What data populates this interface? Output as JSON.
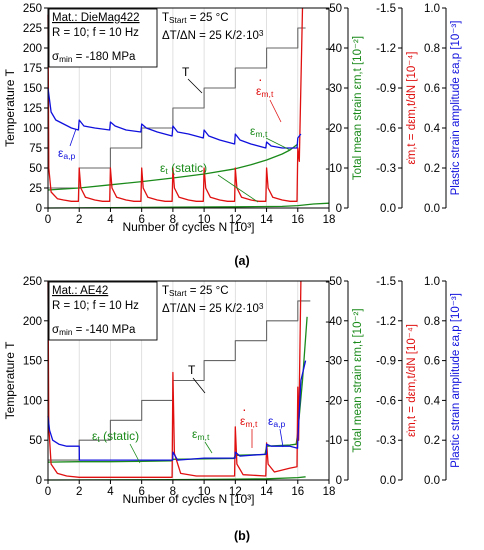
{
  "panels": [
    {
      "panel_label": "(a)",
      "info": {
        "material": "Mat.: DieMag422",
        "line2": "R = 10; f = 10 Hz",
        "sigma_sym": "σ",
        "sigma_sub": "min",
        "sigma_val": " = -180 MPa",
        "tstart_sym": "T",
        "tstart_sub": "Start",
        "tstart_val": " = 25 °C",
        "rate": "ΔT/ΔN = 25 K/2·10",
        "rate_sup": "3"
      },
      "unit_celsius": "°C",
      "annotations": {
        "T": "T",
        "eps_static": "ε",
        "eps_static_sub": "t",
        "eps_static_tail": " (static)",
        "eps_mt": "ε",
        "eps_mt_sub": "m,t",
        "eps_ap": "ε",
        "eps_ap_sub": "a,p",
        "eps_rate": "ε",
        "eps_rate_sub": "m,t"
      },
      "chart_data": {
        "type": "line",
        "xlabel": "Number of cycles N [10³]",
        "xlim": [
          0,
          18
        ],
        "x_ticks": [
          "0",
          "2",
          "4",
          "6",
          "8",
          "10",
          "12",
          "14",
          "16",
          "18"
        ],
        "axes": {
          "temperature": {
            "label": "Temperature T",
            "lim": [
              0,
              250
            ],
            "ticks": [
              "0",
              "25",
              "50",
              "75",
              "100",
              "125",
              "150",
              "175",
              "200",
              "225",
              "250"
            ]
          },
          "total_mean_strain": {
            "label": "Total mean strain εm,t [10⁻²]",
            "lim": [
              0,
              -50
            ],
            "ticks": [
              "0",
              "-10",
              "-20",
              "-30",
              "-40",
              "-50"
            ],
            "color": "#1a8a1a"
          },
          "strain_rate": {
            "label": "ε̇m,t = dεm,t/dN [10⁻⁴]",
            "lim": [
              0,
              -1.5
            ],
            "ticks": [
              "0.0",
              "-0.3",
              "-0.6",
              "-0.9",
              "-1.2",
              "-1.5"
            ],
            "color": "#e01010"
          },
          "plastic_amplitude": {
            "label": "Plastic strain amplitude εa,p [10⁻³]",
            "lim": [
              0,
              1.0
            ],
            "ticks": [
              "0.0",
              "0.2",
              "0.4",
              "0.6",
              "0.8",
              "1.0"
            ],
            "color": "#1010dd"
          }
        },
        "series": [
          {
            "color": "#666666",
            "axis": "temperature",
            "x": [
              0,
              2,
              2,
              4,
              4,
              6,
              6,
              8,
              8,
              10,
              10,
              12,
              12,
              14,
              14,
              16,
              16,
              16.5
            ],
            "y": [
              25,
              25,
              50,
              50,
              75,
              75,
              100,
              100,
              125,
              125,
              150,
              150,
              175,
              175,
              200,
              200,
              225,
              225
            ]
          },
          {
            "color": "#1a8a1a",
            "axis": "total_mean_strain",
            "x": [
              0,
              2,
              4,
              6,
              8,
              10,
              12,
              13,
              14,
              15,
              15.5,
              16
            ],
            "y": [
              -4.5,
              -5,
              -5.8,
              -6.6,
              -7.5,
              -8.5,
              -9.8,
              -10.8,
              -12,
              -13.5,
              -14.5,
              -16
            ]
          },
          {
            "color": "#1a8a1a",
            "axis": "total_mean_strain",
            "x": [
              0,
              4,
              8,
              12,
              15,
              16,
              17,
              18
            ],
            "y": [
              0,
              -0.1,
              -0.2,
              -0.3,
              -0.4,
              -0.6,
              -1,
              -1.2
            ]
          },
          {
            "color": "#e01010",
            "axis": "strain_rate",
            "x": [
              0,
              0.05,
              0.2,
              0.6,
              1,
              1.5,
              1.95,
              2,
              2.1,
              2.4,
              3,
              3.5,
              3.95,
              4,
              4.1,
              4.4,
              5,
              5.5,
              5.95,
              6,
              6.1,
              6.4,
              7,
              7.5,
              7.95,
              8,
              8.1,
              8.4,
              9,
              9.5,
              9.95,
              10,
              10.1,
              10.4,
              11,
              11.5,
              11.95,
              12,
              12.1,
              12.4,
              13,
              13.5,
              13.95,
              14,
              14.1,
              14.4,
              15,
              15.5,
              15.95,
              16,
              16.1,
              16.3
            ],
            "y": [
              -1.45,
              -0.3,
              -0.12,
              -0.07,
              -0.06,
              -0.05,
              -0.05,
              -0.3,
              -0.15,
              -0.08,
              -0.06,
              -0.05,
              -0.05,
              -0.3,
              -0.15,
              -0.08,
              -0.06,
              -0.05,
              -0.05,
              -0.3,
              -0.15,
              -0.08,
              -0.06,
              -0.05,
              -0.05,
              -0.3,
              -0.15,
              -0.08,
              -0.06,
              -0.05,
              -0.05,
              -0.3,
              -0.15,
              -0.08,
              -0.06,
              -0.05,
              -0.05,
              -0.3,
              -0.15,
              -0.08,
              -0.06,
              -0.05,
              -0.05,
              -0.3,
              -0.15,
              -0.08,
              -0.06,
              -0.05,
              -0.05,
              -0.45,
              -0.35,
              -1.5
            ]
          },
          {
            "color": "#1010dd",
            "axis": "plastic_amplitude",
            "x": [
              0,
              0.2,
              0.5,
              1,
              1.5,
              1.95,
              2,
              2.3,
              3,
              3.95,
              4,
              4.3,
              5,
              5.95,
              6,
              6.3,
              7,
              7.95,
              8,
              8.3,
              9,
              9.95,
              10,
              10.3,
              11,
              11.95,
              12,
              12.3,
              13,
              13.95,
              14,
              14.3,
              15,
              15.95,
              16,
              16.2
            ],
            "y": [
              0.6,
              0.48,
              0.44,
              0.42,
              0.4,
              0.39,
              0.44,
              0.41,
              0.4,
              0.39,
              0.43,
              0.41,
              0.39,
              0.38,
              0.42,
              0.4,
              0.38,
              0.36,
              0.41,
              0.38,
              0.37,
              0.35,
              0.39,
              0.36,
              0.34,
              0.32,
              0.37,
              0.34,
              0.32,
              0.3,
              0.33,
              0.31,
              0.3,
              0.3,
              0.35,
              0.37
            ]
          }
        ]
      }
    },
    {
      "panel_label": "(b)",
      "info": {
        "material": "Mat.: AE42",
        "line2": "R = 10; f = 10 Hz",
        "sigma_sym": "σ",
        "sigma_sub": "min",
        "sigma_val": " = -140 MPa",
        "tstart_sym": "T",
        "tstart_sub": "Start",
        "tstart_val": " = 25 °C",
        "rate": "ΔT/ΔN = 25 K/2·10",
        "rate_sup": "3"
      },
      "unit_celsius": "°C",
      "annotations": {
        "T": "T",
        "eps_static": "ε",
        "eps_static_sub": "t",
        "eps_static_tail": " (static)",
        "eps_mt": "ε",
        "eps_mt_sub": "m,t",
        "eps_ap": "ε",
        "eps_ap_sub": "a,p",
        "eps_rate": "ε",
        "eps_rate_sub": "m,t"
      },
      "chart_data": {
        "type": "line",
        "xlabel": "Number of cycles N [10³]",
        "xlim": [
          0,
          18
        ],
        "x_ticks": [
          "0",
          "2",
          "4",
          "6",
          "8",
          "10",
          "12",
          "14",
          "16",
          "18"
        ],
        "axes": {
          "temperature": {
            "label": "Temperature T",
            "lim": [
              0,
              250
            ],
            "ticks": [
              "0",
              "50",
              "100",
              "150",
              "200",
              "250"
            ]
          },
          "total_mean_strain": {
            "label": "Total mean strain εm,t [10⁻²]",
            "lim": [
              0,
              -50
            ],
            "ticks": [
              "0",
              "-10",
              "-20",
              "-30",
              "-40",
              "-50"
            ],
            "color": "#1a8a1a"
          },
          "strain_rate": {
            "label": "ε̇m,t = dεm,t/dN [10⁻⁴]",
            "lim": [
              0,
              -1.5
            ],
            "ticks": [
              "0.0",
              "-0.3",
              "-0.6",
              "-0.9",
              "-1.2",
              "-1.5"
            ],
            "color": "#e01010"
          },
          "plastic_amplitude": {
            "label": "Plastic strain amplitude εa,p [10⁻³]",
            "lim": [
              0,
              1.0
            ],
            "ticks": [
              "0.0",
              "0.2",
              "0.4",
              "0.6",
              "0.8",
              "1.0"
            ],
            "color": "#1010dd"
          }
        },
        "series": [
          {
            "color": "#666666",
            "axis": "temperature",
            "x": [
              0,
              2,
              2,
              4,
              4,
              6,
              6,
              8,
              8,
              10,
              10,
              12,
              12,
              14,
              14,
              16,
              16,
              16.8
            ],
            "y": [
              25,
              25,
              50,
              50,
              75,
              75,
              100,
              100,
              125,
              125,
              150,
              150,
              175,
              175,
              200,
              200,
              225,
              225
            ]
          },
          {
            "color": "#1a8a1a",
            "axis": "total_mean_strain",
            "x": [
              0,
              2,
              4,
              6,
              7.9,
              8,
              10,
              11.9,
              12,
              13.9,
              14,
              15.5,
              15.9,
              16,
              16.3,
              16.6
            ],
            "y": [
              -4.5,
              -4.6,
              -4.6,
              -4.7,
              -4.8,
              -5.2,
              -5.3,
              -5.4,
              -6.2,
              -6.4,
              -8.5,
              -8.8,
              -9,
              -12,
              -25,
              -41
            ]
          },
          {
            "color": "#1a8a1a",
            "axis": "total_mean_strain",
            "x": [
              0,
              8,
              12,
              14,
              16,
              16.5
            ],
            "y": [
              0,
              -0.1,
              -0.2,
              -0.3,
              -0.6,
              -0.8
            ]
          },
          {
            "color": "#e01010",
            "axis": "strain_rate",
            "x": [
              0,
              0.05,
              0.2,
              0.6,
              1.2,
              2,
              4,
              6,
              7.95,
              8,
              8.1,
              8.5,
              9.5,
              11.95,
              12,
              12.1,
              12.5,
              13.95,
              14,
              14.1,
              14.5,
              15.5,
              15.95,
              16,
              16.05,
              16.2
            ],
            "y": [
              -1.5,
              -0.4,
              -0.12,
              -0.05,
              -0.03,
              -0.02,
              -0.02,
              -0.02,
              -0.02,
              -0.81,
              -0.2,
              -0.05,
              -0.03,
              -0.03,
              -0.4,
              -0.12,
              -0.04,
              -0.03,
              -0.28,
              -0.12,
              -0.06,
              -0.09,
              -0.1,
              -0.7,
              -0.3,
              -1.5
            ]
          },
          {
            "color": "#1010dd",
            "axis": "plastic_amplitude",
            "x": [
              0,
              0.1,
              0.3,
              0.7,
              1.2,
              2,
              2.01,
              4,
              6,
              7.99,
              8,
              8.3,
              10,
              11.99,
              12,
              12.3,
              13.99,
              14,
              14.3,
              15.5,
              15.99,
              16,
              16.2,
              16.5
            ],
            "y": [
              0.32,
              0.25,
              0.2,
              0.18,
              0.17,
              0.17,
              0.1,
              0.1,
              0.1,
              0.1,
              0.14,
              0.1,
              0.11,
              0.11,
              0.14,
              0.12,
              0.13,
              0.18,
              0.17,
              0.17,
              0.16,
              0.2,
              0.5,
              0.6
            ]
          }
        ]
      }
    }
  ]
}
